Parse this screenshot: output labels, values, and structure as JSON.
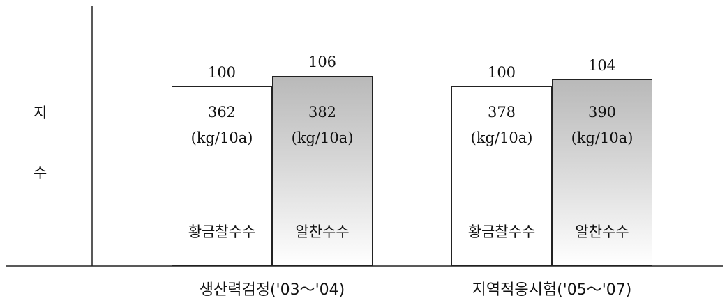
{
  "chart_data": {
    "type": "bar",
    "ylabel": [
      "지",
      "수"
    ],
    "categories": [
      "생산력검정('03～'04)",
      "지역적응시험('05～'07)"
    ],
    "series": [
      {
        "name": "황금찰수수",
        "color": "#ffffff",
        "index_values": [
          100,
          100
        ],
        "yields": [
          362,
          378
        ],
        "unit": "(kg/10a)"
      },
      {
        "name": "알찬수수",
        "color": "#c8c8c8",
        "index_values": [
          106,
          104
        ],
        "yields": [
          382,
          390
        ],
        "unit": "(kg/10a)"
      }
    ]
  }
}
